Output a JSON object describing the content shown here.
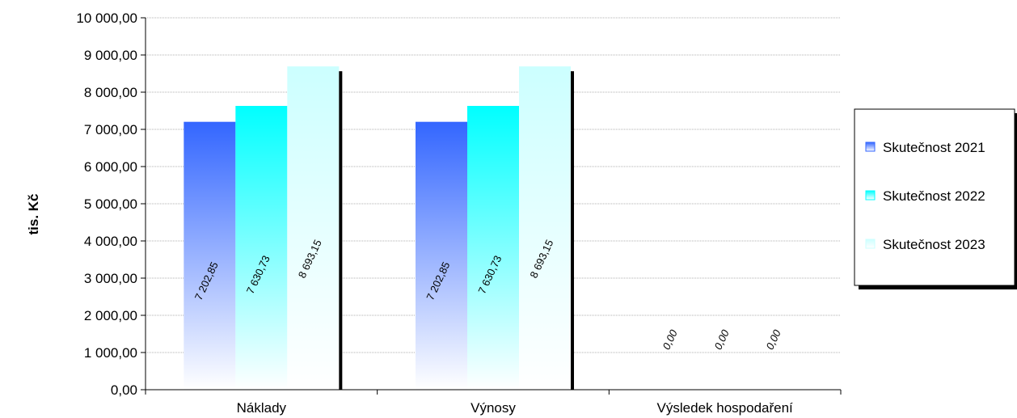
{
  "chart_data": {
    "type": "bar",
    "title": "",
    "xlabel": "",
    "ylabel": "tis. Kč",
    "categories": [
      "Náklady",
      "Výnosy",
      "Výsledek hospodaření"
    ],
    "series": [
      {
        "name": "Skutečnost 2021",
        "values": [
          7202.85,
          7202.85,
          0
        ],
        "labels": [
          "7 202,85",
          "7 202,85",
          "0,00"
        ]
      },
      {
        "name": "Skutečnost 2022",
        "values": [
          7630.73,
          7630.73,
          0
        ],
        "labels": [
          "7 630,73",
          "7 630,73",
          "0,00"
        ]
      },
      {
        "name": "Skutečnost 2023",
        "values": [
          8693.15,
          8693.15,
          0
        ],
        "labels": [
          "8 693,15",
          "8 693,15",
          "0,00"
        ]
      }
    ],
    "ylim": [
      0,
      10000
    ],
    "yticks": [
      0,
      1000,
      2000,
      3000,
      4000,
      5000,
      6000,
      7000,
      8000,
      9000,
      10000
    ],
    "ytick_labels": [
      "0,00",
      "1 000,00",
      "2 000,00",
      "3 000,00",
      "4 000,00",
      "5 000,00",
      "6 000,00",
      "7 000,00",
      "8 000,00",
      "9 000,00",
      "10 000,00"
    ],
    "grid": true,
    "legend_position": "right",
    "colors": {
      "series_0": "#3366ff",
      "series_1": "#00ffff",
      "series_2": "#ccffff",
      "gridline": "#b0b0b0"
    }
  }
}
